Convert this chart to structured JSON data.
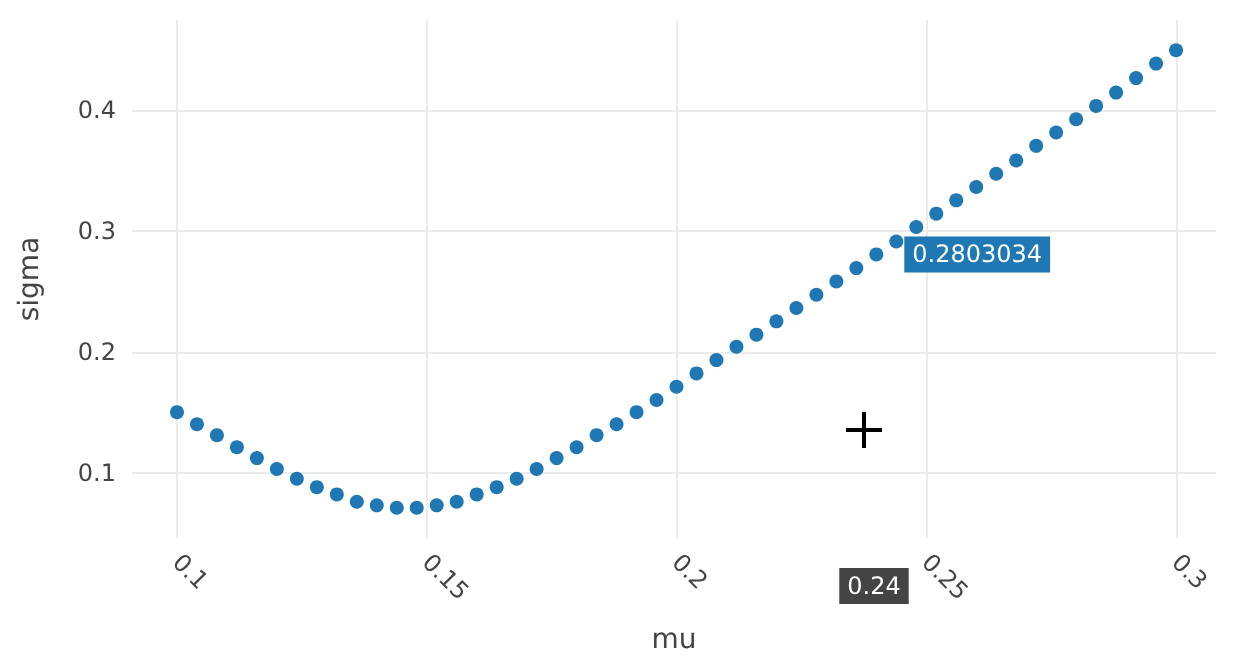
{
  "chart_data": {
    "type": "scatter",
    "xlabel": "mu",
    "ylabel": "sigma",
    "x": [
      0.1,
      0.104,
      0.108,
      0.112,
      0.116,
      0.12,
      0.124,
      0.128,
      0.132,
      0.136,
      0.14,
      0.144,
      0.148,
      0.152,
      0.156,
      0.16,
      0.164,
      0.168,
      0.172,
      0.176,
      0.18,
      0.184,
      0.188,
      0.192,
      0.196,
      0.2,
      0.204,
      0.208,
      0.212,
      0.216,
      0.22,
      0.224,
      0.228,
      0.232,
      0.236,
      0.24,
      0.244,
      0.248,
      0.252,
      0.256,
      0.26,
      0.264,
      0.268,
      0.272,
      0.276,
      0.28,
      0.284,
      0.288,
      0.292,
      0.296,
      0.3
    ],
    "series": [
      {
        "color": "#1f77b4",
        "values": [
          0.15,
          0.14,
          0.131,
          0.121,
          0.112,
          0.103,
          0.095,
          0.088,
          0.082,
          0.076,
          0.073,
          0.071,
          0.071,
          0.073,
          0.076,
          0.082,
          0.088,
          0.095,
          0.103,
          0.112,
          0.121,
          0.131,
          0.14,
          0.15,
          0.16,
          0.171,
          0.182,
          0.193,
          0.204,
          0.214,
          0.225,
          0.236,
          0.247,
          0.258,
          0.269,
          0.2803034,
          0.291,
          0.303,
          0.314,
          0.325,
          0.336,
          0.347,
          0.358,
          0.37,
          0.381,
          0.392,
          0.403,
          0.414,
          0.426,
          0.438,
          0.449
        ]
      }
    ],
    "xlim": [
      0.091,
      0.308
    ],
    "xticks": [
      0.1,
      0.15,
      0.2,
      0.25,
      0.3
    ],
    "ylim": [
      0.046,
      0.474
    ],
    "yticks": [
      0.1,
      0.2,
      0.3,
      0.4
    ],
    "grid": true,
    "marker": "circle",
    "annotations": [
      {
        "text": "0.2803034",
        "x": 0.24,
        "y": 0.2803034
      },
      "0.24"
    ]
  }
}
